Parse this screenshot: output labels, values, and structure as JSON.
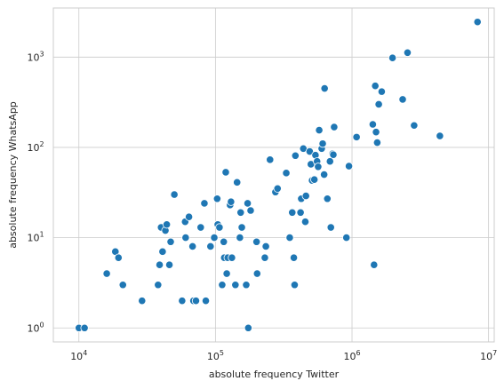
{
  "chart_data": {
    "type": "scatter",
    "xlabel": "absolute frequency Twitter",
    "ylabel": "absolute frequency WhatsApp",
    "xscale": "log",
    "yscale": "log",
    "xlim": [
      6500,
      11000000
    ],
    "ylim": [
      0.7,
      3500
    ],
    "grid": true,
    "point_color": "#1f77b4",
    "x_ticks": [
      {
        "value": 10000,
        "base": "10",
        "exp": "4"
      },
      {
        "value": 100000,
        "base": "10",
        "exp": "5"
      },
      {
        "value": 1000000,
        "base": "10",
        "exp": "6"
      },
      {
        "value": 10000000,
        "base": "10",
        "exp": "7"
      }
    ],
    "y_ticks": [
      {
        "value": 1,
        "base": "10",
        "exp": "0"
      },
      {
        "value": 10,
        "base": "10",
        "exp": "1"
      },
      {
        "value": 100,
        "base": "10",
        "exp": "2"
      },
      {
        "value": 1000,
        "base": "10",
        "exp": "3"
      }
    ],
    "points": [
      [
        10000,
        1
      ],
      [
        11000,
        1
      ],
      [
        16000,
        4
      ],
      [
        18500,
        7
      ],
      [
        19500,
        6
      ],
      [
        21000,
        3
      ],
      [
        29000,
        2
      ],
      [
        38000,
        3
      ],
      [
        39000,
        5
      ],
      [
        40000,
        13
      ],
      [
        41000,
        7
      ],
      [
        43000,
        12
      ],
      [
        44000,
        14
      ],
      [
        46000,
        5
      ],
      [
        47000,
        9
      ],
      [
        50000,
        30
      ],
      [
        57000,
        2
      ],
      [
        60000,
        15
      ],
      [
        60500,
        10
      ],
      [
        64000,
        17
      ],
      [
        68000,
        8
      ],
      [
        69000,
        2
      ],
      [
        72000,
        2
      ],
      [
        78000,
        13
      ],
      [
        83000,
        24
      ],
      [
        85000,
        2
      ],
      [
        92000,
        8
      ],
      [
        98000,
        10
      ],
      [
        103000,
        27
      ],
      [
        104000,
        14
      ],
      [
        107000,
        13
      ],
      [
        112000,
        3
      ],
      [
        115000,
        9
      ],
      [
        116000,
        6
      ],
      [
        119000,
        53
      ],
      [
        121000,
        4
      ],
      [
        123000,
        6
      ],
      [
        128000,
        23
      ],
      [
        130000,
        25
      ],
      [
        132000,
        6
      ],
      [
        140000,
        3
      ],
      [
        144000,
        41
      ],
      [
        151000,
        10
      ],
      [
        153000,
        19
      ],
      [
        156000,
        13
      ],
      [
        168000,
        3
      ],
      [
        172000,
        24
      ],
      [
        174000,
        1
      ],
      [
        181000,
        20
      ],
      [
        200000,
        9
      ],
      [
        202000,
        4
      ],
      [
        230000,
        6
      ],
      [
        234000,
        8
      ],
      [
        251000,
        73
      ],
      [
        275000,
        32
      ],
      [
        285000,
        35
      ],
      [
        330000,
        52
      ],
      [
        350000,
        10
      ],
      [
        365000,
        19
      ],
      [
        375000,
        6
      ],
      [
        380000,
        3
      ],
      [
        385000,
        81
      ],
      [
        420000,
        19
      ],
      [
        425000,
        27
      ],
      [
        440000,
        97
      ],
      [
        455000,
        15
      ],
      [
        460000,
        29
      ],
      [
        490000,
        90
      ],
      [
        500000,
        65
      ],
      [
        510000,
        43
      ],
      [
        530000,
        44
      ],
      [
        540000,
        82
      ],
      [
        555000,
        70
      ],
      [
        565000,
        61
      ],
      [
        575000,
        155
      ],
      [
        600000,
        97
      ],
      [
        610000,
        110
      ],
      [
        625000,
        50
      ],
      [
        630000,
        450
      ],
      [
        660000,
        27
      ],
      [
        690000,
        70
      ],
      [
        700000,
        13
      ],
      [
        720000,
        85
      ],
      [
        730000,
        83
      ],
      [
        740000,
        168
      ],
      [
        910000,
        10
      ],
      [
        950000,
        62
      ],
      [
        1080000,
        130
      ],
      [
        1420000,
        180
      ],
      [
        1450000,
        5
      ],
      [
        1480000,
        480
      ],
      [
        1500000,
        148
      ],
      [
        1530000,
        113
      ],
      [
        1570000,
        300
      ],
      [
        1650000,
        415
      ],
      [
        1980000,
        980
      ],
      [
        2350000,
        340
      ],
      [
        2550000,
        1120
      ],
      [
        2850000,
        175
      ],
      [
        4400000,
        134
      ],
      [
        8300000,
        2450
      ]
    ]
  }
}
